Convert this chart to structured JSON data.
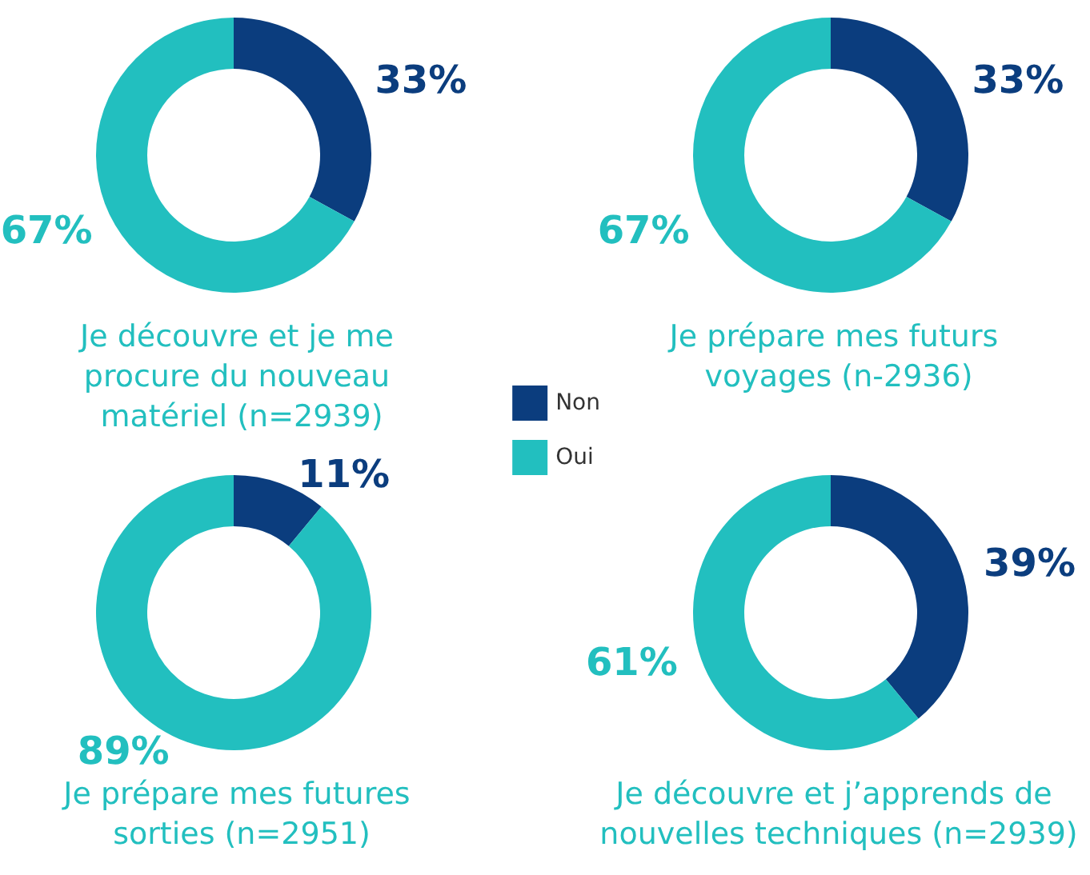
{
  "chart_data": [
    {
      "type": "donut",
      "title": "Je découvre et je me procure du nouveau matériel (n=2939)",
      "categories": [
        "Non",
        "Oui"
      ],
      "values": [
        33,
        67
      ],
      "colors": [
        "#0b3d7e",
        "#22bfbf"
      ],
      "value_labels": [
        "33%",
        "67%"
      ],
      "legend": "right"
    },
    {
      "type": "donut",
      "title": "Je prépare mes futurs voyages (n-2936)",
      "categories": [
        null,
        null
      ],
      "values": [
        33,
        67
      ],
      "colors": [
        "#0b3d7e",
        "#22bfbf"
      ],
      "value_labels": [
        "33%",
        "67%"
      ]
    },
    {
      "type": "donut",
      "title": "Je prépare mes futures sorties (n=2951)",
      "categories": [
        null,
        null
      ],
      "values": [
        11,
        89
      ],
      "colors": [
        "#0b3d7e",
        "#22bfbf"
      ],
      "value_labels": [
        "11%",
        "89%"
      ]
    },
    {
      "type": "donut",
      "title": "Je découvre et j’apprends de nouvelles techniques (n=2939)",
      "categories": [
        null,
        null
      ],
      "values": [
        39,
        61
      ],
      "colors": [
        "#0b3d7e",
        "#22bfbf"
      ],
      "value_labels": [
        "39%",
        "61%"
      ]
    }
  ]
}
